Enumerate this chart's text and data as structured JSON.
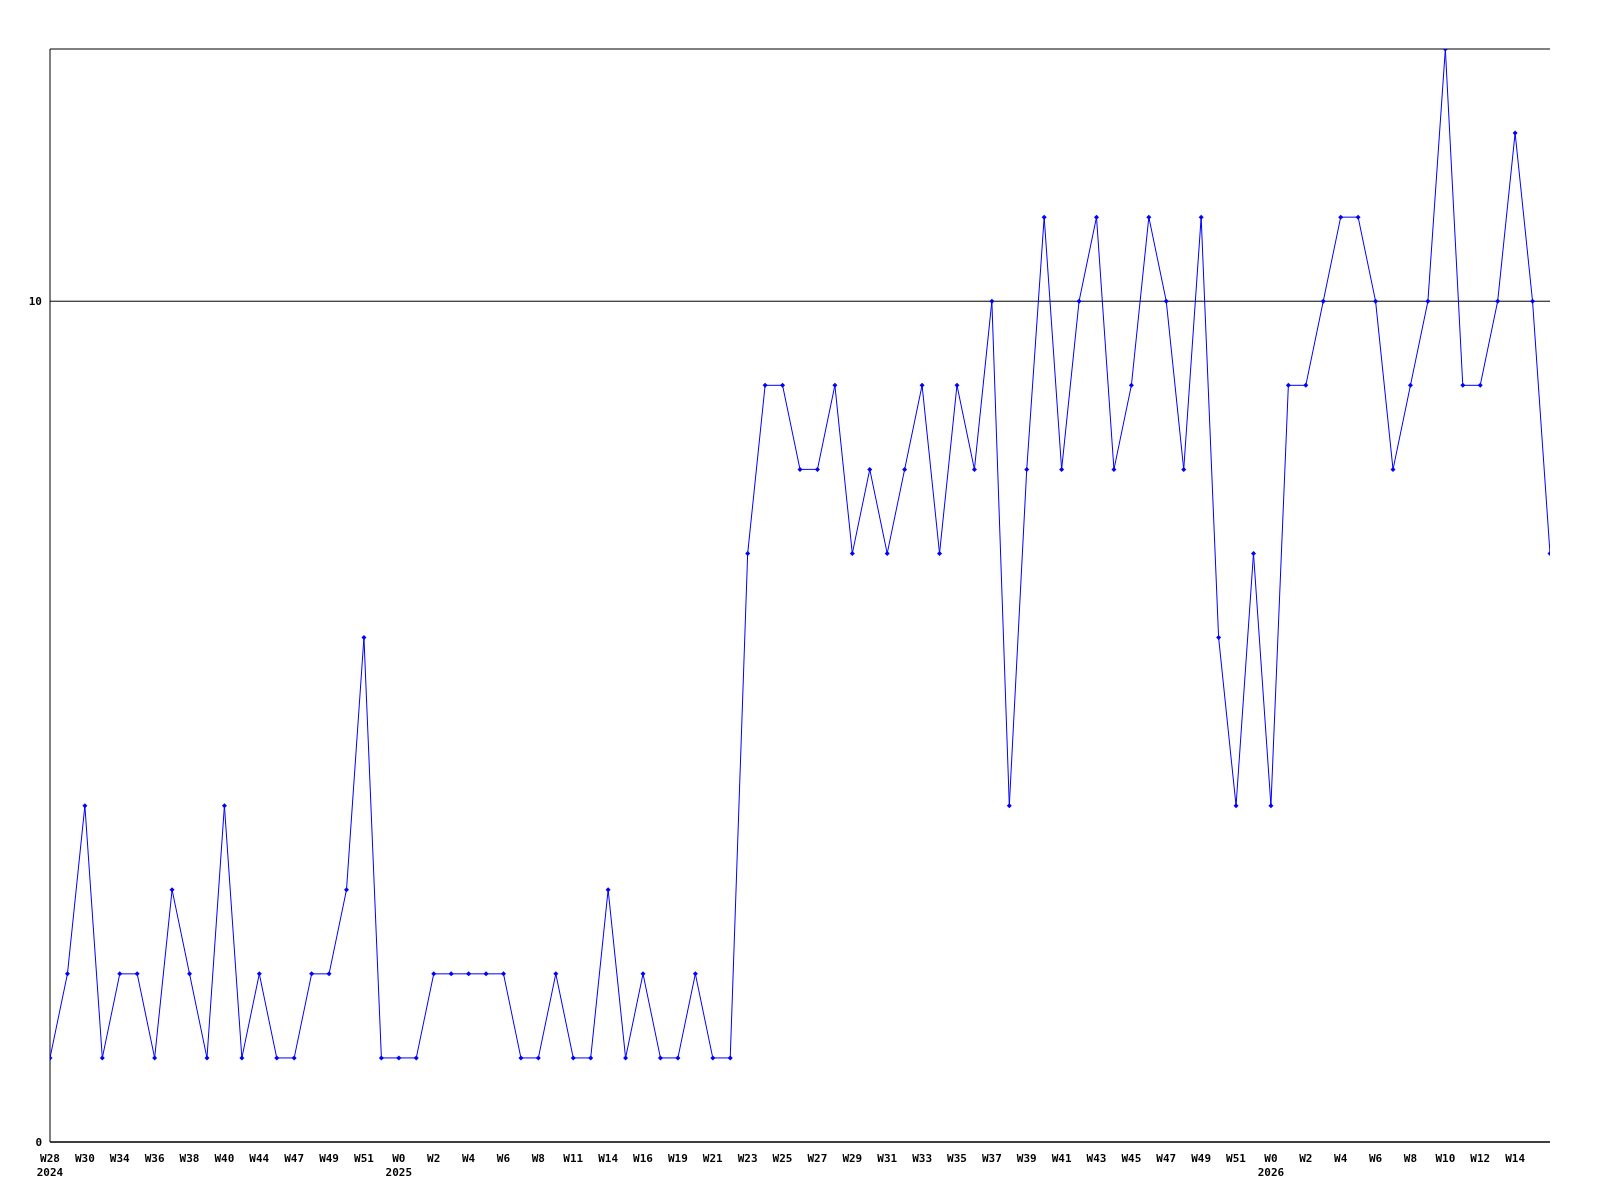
{
  "chart_data": {
    "type": "line",
    "categories": [
      "W28\n2024",
      null,
      "W30",
      null,
      "W34",
      null,
      "W36",
      null,
      "W38",
      null,
      "W40",
      null,
      "W44",
      null,
      "W47",
      null,
      "W49",
      null,
      "W51",
      null,
      "W0\n2025",
      null,
      "W2",
      null,
      "W4",
      null,
      "W6",
      null,
      "W8",
      null,
      "W11",
      null,
      "W14",
      null,
      "W16",
      null,
      "W19",
      null,
      "W21",
      null,
      "W23",
      null,
      "W25",
      null,
      "W27",
      null,
      "W29",
      null,
      "W31",
      null,
      "W33",
      null,
      "W35",
      null,
      "W37",
      null,
      "W39",
      null,
      "W41",
      null,
      "W43",
      null,
      "W45",
      null,
      "W47",
      null,
      "W49",
      null,
      "W51",
      null,
      "W0\n2026",
      null,
      "W2",
      null,
      "W4",
      null,
      "W6",
      null,
      "W8",
      null,
      "W10",
      null,
      "W12",
      null,
      "W14",
      null,
      null
    ],
    "series": [
      {
        "color": "#0000ff",
        "values": [
          1,
          2,
          4,
          1,
          2,
          2,
          1,
          3,
          2,
          1,
          4,
          1,
          2,
          1,
          1,
          2,
          2,
          3,
          6,
          1,
          1,
          1,
          2,
          2,
          2,
          2,
          2,
          1,
          1,
          2,
          1,
          1,
          3,
          1,
          2,
          1,
          1,
          2,
          1,
          1,
          7,
          9,
          9,
          8,
          8,
          9,
          7,
          8,
          7,
          8,
          9,
          7,
          9,
          8,
          10,
          4,
          8,
          11,
          8,
          10,
          11,
          8,
          9,
          11,
          10,
          8,
          11,
          6,
          4,
          7,
          4,
          9,
          9,
          10,
          11,
          11,
          10,
          8,
          9,
          10,
          13,
          9,
          9,
          10,
          12,
          10,
          7
        ]
      }
    ],
    "ylim": [
      0,
      13
    ],
    "yticks": [
      0,
      10
    ],
    "grid": "y",
    "marker": "diamond",
    "line_style": "solid"
  }
}
